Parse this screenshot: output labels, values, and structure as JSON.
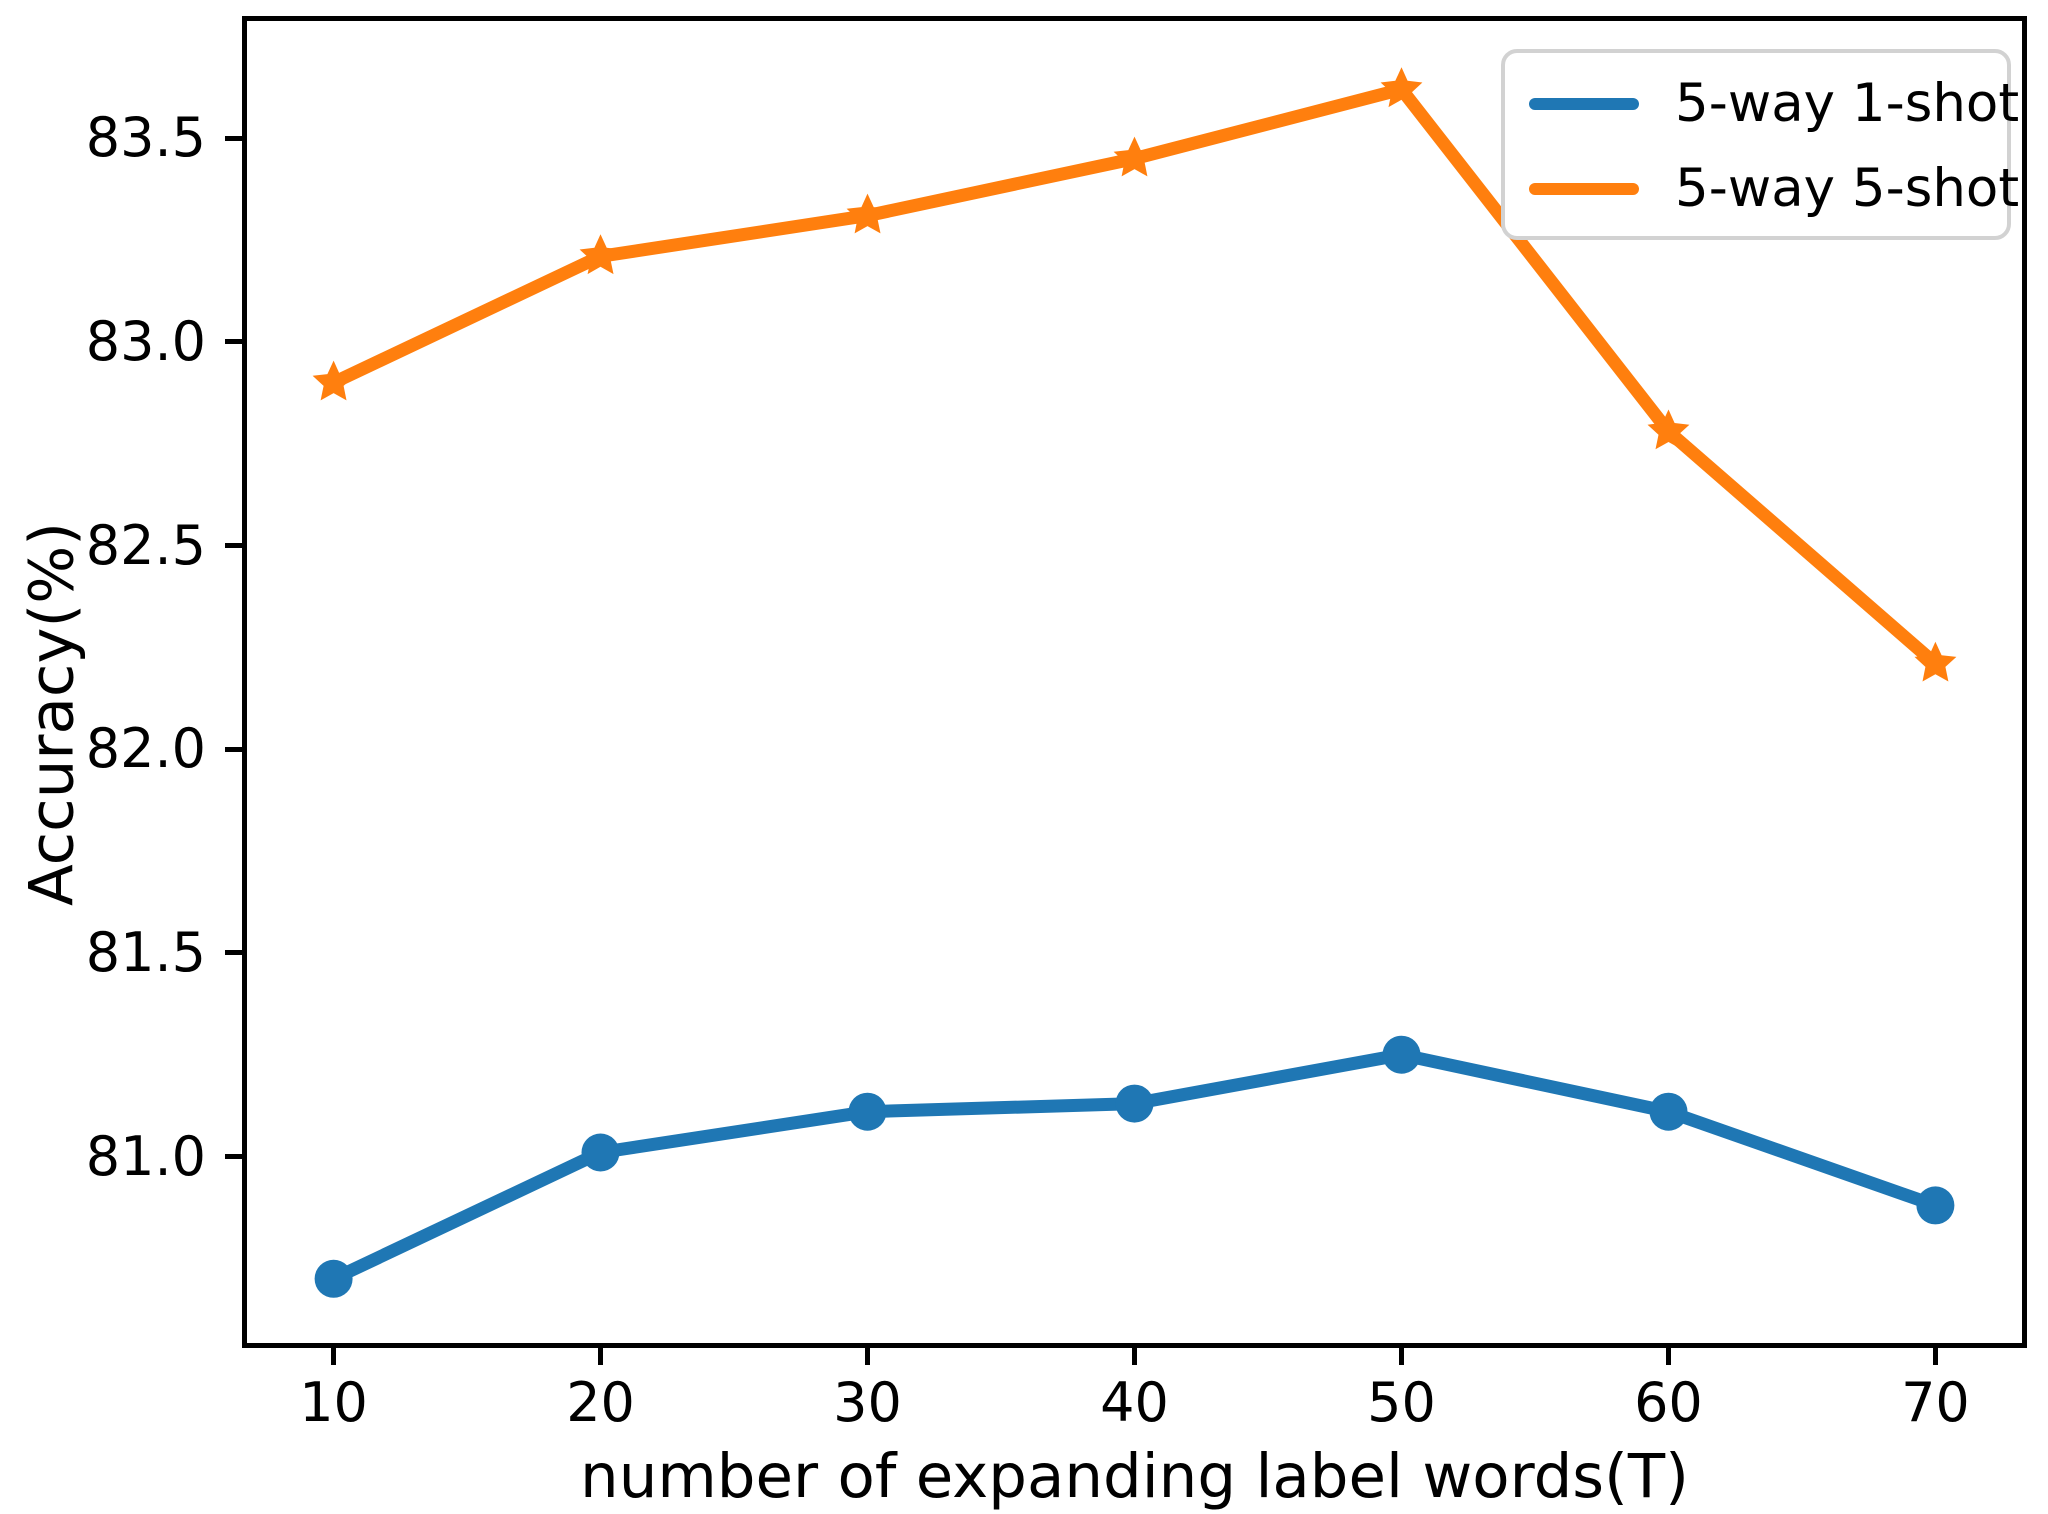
{
  "figure": {
    "background": "#ffffff",
    "spine_color": "#000000"
  },
  "chart_data": {
    "type": "line",
    "title": "",
    "xlabel": "number of expanding label words(T)",
    "ylabel": "Accuracy(%)",
    "x": [
      10,
      20,
      30,
      40,
      50,
      60,
      70
    ],
    "series": [
      {
        "name": "5-way 1-shot",
        "color": "#1f77b4",
        "marker": "circle",
        "values": [
          80.7,
          81.01,
          81.11,
          81.13,
          81.25,
          81.11,
          80.88
        ]
      },
      {
        "name": "5-way 5-shot",
        "color": "#ff7f0e",
        "marker": "star",
        "values": [
          82.9,
          83.21,
          83.31,
          83.45,
          83.62,
          82.78,
          82.21
        ]
      }
    ],
    "xlim": [
      6.57,
      73.43
    ],
    "ylim": [
      80.53,
      83.8
    ],
    "xticks": [
      10,
      20,
      30,
      40,
      50,
      60,
      70
    ],
    "xtick_labels": [
      "10",
      "20",
      "30",
      "40",
      "50",
      "60",
      "70"
    ],
    "yticks": [
      81.0,
      81.5,
      82.0,
      82.5,
      83.0,
      83.5
    ],
    "ytick_labels": [
      "81.0",
      "81.5",
      "82.0",
      "82.5",
      "83.0",
      "83.5"
    ],
    "grid": false,
    "legend_position": "upper right"
  },
  "legend": {
    "items": [
      {
        "label": "5-way 1-shot",
        "color": "#1f77b4"
      },
      {
        "label": "5-way 5-shot",
        "color": "#ff7f0e"
      }
    ]
  }
}
